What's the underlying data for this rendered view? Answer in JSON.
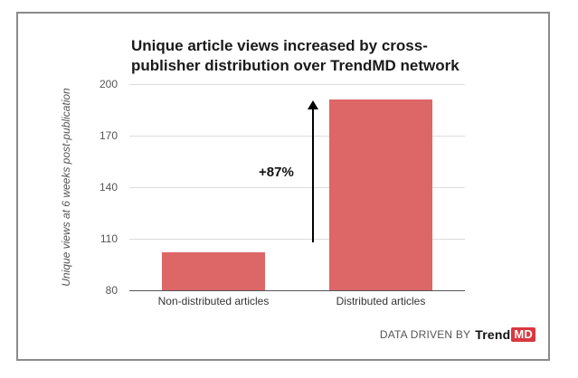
{
  "chart_data": {
    "type": "bar",
    "title": "Unique article views increased by cross-publisher distribution over TrendMD network",
    "title_lines": [
      "Unique article views increased by cross-",
      "publisher distribution over TrendMD network"
    ],
    "xlabel": "",
    "ylabel": "Unique views at 6 weeks post-publication",
    "categories": [
      "Non-distributed articles",
      "Distributed articles"
    ],
    "values": [
      102,
      191
    ],
    "ylim": [
      80,
      200
    ],
    "yticks": [
      200,
      170,
      140,
      110,
      80
    ],
    "grid": true,
    "legend": null,
    "annotations": [
      {
        "text": "+87%",
        "type": "arrow-up",
        "from": 110,
        "to": 191
      }
    ],
    "bar_color": "#dd6666"
  },
  "footer": {
    "prefix": "DATA DRIVEN BY",
    "brand_trend": "Trend",
    "brand_md": "MD",
    "brand_color": "#d9383f"
  }
}
